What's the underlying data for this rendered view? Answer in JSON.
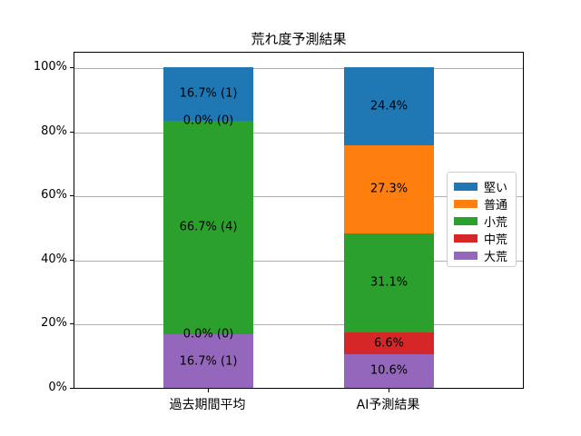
{
  "chart_data": {
    "type": "bar",
    "stacked": true,
    "title": "荒れ度予測結果",
    "categories": [
      "過去期間平均",
      "AI予測結果"
    ],
    "series": [
      {
        "name": "大荒",
        "color": "#9467bd",
        "values": [
          16.7,
          10.6
        ],
        "bar_labels": [
          "16.7% (1)",
          "10.6%"
        ]
      },
      {
        "name": "中荒",
        "color": "#d62728",
        "values": [
          0.0,
          6.6
        ],
        "bar_labels": [
          "0.0% (0)",
          "6.6%"
        ]
      },
      {
        "name": "小荒",
        "color": "#2ca02c",
        "values": [
          66.7,
          31.1
        ],
        "bar_labels": [
          "66.7% (4)",
          "31.1%"
        ]
      },
      {
        "name": "普通",
        "color": "#ff7f0e",
        "values": [
          0.0,
          27.3
        ],
        "bar_labels": [
          "0.0% (0)",
          "27.3%"
        ]
      },
      {
        "name": "堅い",
        "color": "#1f77b4",
        "values": [
          16.7,
          24.4
        ],
        "bar_labels": [
          "16.7% (1)",
          "24.4%"
        ]
      }
    ],
    "legend": {
      "position": "center right",
      "entries": [
        "堅い",
        "普通",
        "小荒",
        "中荒",
        "大荒"
      ]
    },
    "yticks": [
      {
        "label": "0%",
        "value": 0
      },
      {
        "label": "20%",
        "value": 20
      },
      {
        "label": "40%",
        "value": 40
      },
      {
        "label": "60%",
        "value": 60
      },
      {
        "label": "80%",
        "value": 80
      },
      {
        "label": "100%",
        "value": 100
      }
    ],
    "ylim": [
      0,
      105
    ],
    "grid": true,
    "grid_color": "#b0b0b0",
    "axis_color": "#000000",
    "background": "#ffffff"
  }
}
